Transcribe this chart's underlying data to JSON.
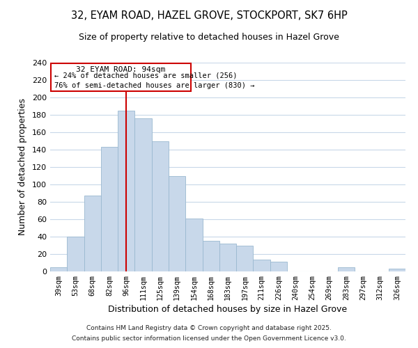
{
  "title": "32, EYAM ROAD, HAZEL GROVE, STOCKPORT, SK7 6HP",
  "subtitle": "Size of property relative to detached houses in Hazel Grove",
  "xlabel": "Distribution of detached houses by size in Hazel Grove",
  "ylabel": "Number of detached properties",
  "bar_color": "#c8d8ea",
  "bar_edge_color": "#9ab8d0",
  "categories": [
    "39sqm",
    "53sqm",
    "68sqm",
    "82sqm",
    "96sqm",
    "111sqm",
    "125sqm",
    "139sqm",
    "154sqm",
    "168sqm",
    "183sqm",
    "197sqm",
    "211sqm",
    "226sqm",
    "240sqm",
    "254sqm",
    "269sqm",
    "283sqm",
    "297sqm",
    "312sqm",
    "326sqm"
  ],
  "values": [
    5,
    40,
    87,
    143,
    185,
    176,
    150,
    110,
    61,
    35,
    32,
    30,
    14,
    11,
    0,
    0,
    0,
    5,
    0,
    0,
    3
  ],
  "ylim": [
    0,
    240
  ],
  "yticks": [
    0,
    20,
    40,
    60,
    80,
    100,
    120,
    140,
    160,
    180,
    200,
    220,
    240
  ],
  "vline_index": 4,
  "marker_label": "32 EYAM ROAD: 94sqm",
  "annotation_line1": "← 24% of detached houses are smaller (256)",
  "annotation_line2": "76% of semi-detached houses are larger (830) →",
  "vline_color": "#cc0000",
  "box_edge_color": "#cc0000",
  "footer_line1": "Contains HM Land Registry data © Crown copyright and database right 2025.",
  "footer_line2": "Contains public sector information licensed under the Open Government Licence v3.0.",
  "background_color": "#ffffff",
  "grid_color": "#c8d8e8"
}
